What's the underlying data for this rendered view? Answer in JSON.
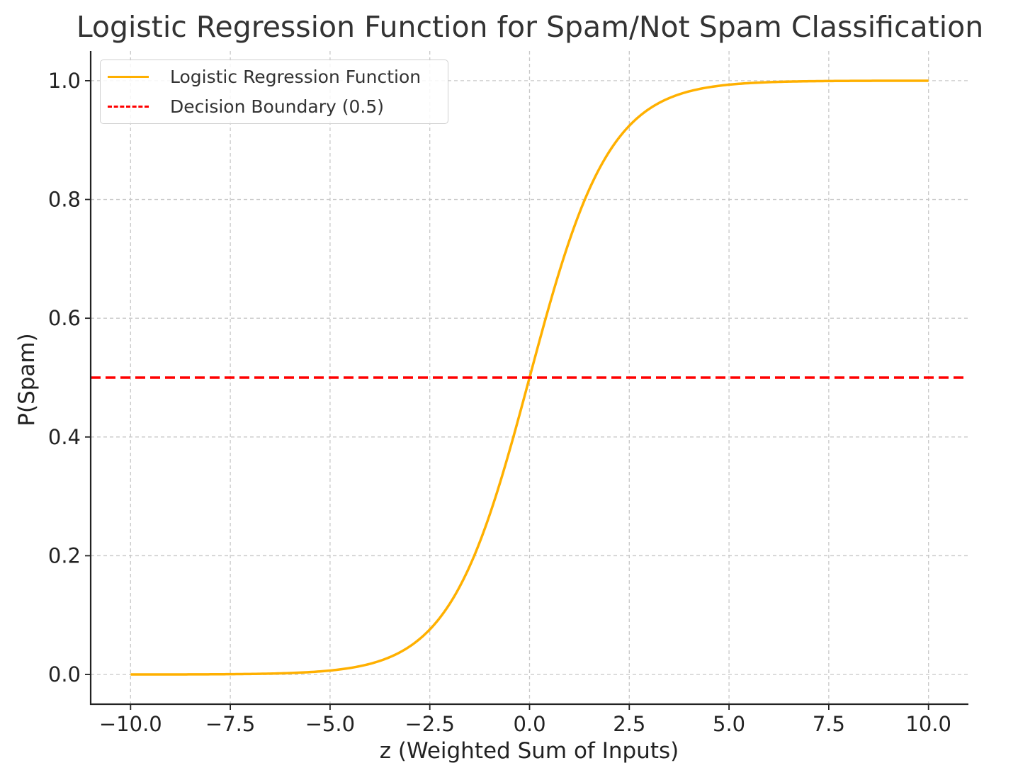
{
  "chart_data": {
    "type": "line",
    "title": "Logistic Regression Function for Spam/Not Spam Classification",
    "xlabel": "z (Weighted Sum of Inputs)",
    "ylabel": "P(Spam)",
    "xlim": [
      -11,
      11
    ],
    "ylim": [
      -0.05,
      1.05
    ],
    "xticks": [
      -10,
      -7.5,
      -5,
      -2.5,
      0,
      2.5,
      5,
      7.5,
      10
    ],
    "xtick_labels": [
      "−10.0",
      "−7.5",
      "−5.0",
      "−2.5",
      "0.0",
      "2.5",
      "5.0",
      "7.5",
      "10.0"
    ],
    "yticks": [
      0,
      0.2,
      0.4,
      0.6,
      0.8,
      1.0
    ],
    "ytick_labels": [
      "0.0",
      "0.2",
      "0.4",
      "0.6",
      "0.8",
      "1.0"
    ],
    "grid": true,
    "legend_position": "top-left",
    "series": [
      {
        "name": "Logistic Regression Function",
        "color": "#FFB000",
        "x": [
          -10,
          -9,
          -8,
          -7,
          -6,
          -5,
          -4.5,
          -4,
          -3.5,
          -3,
          -2.5,
          -2,
          -1.5,
          -1,
          -0.5,
          0,
          0.5,
          1,
          1.5,
          2,
          2.5,
          3,
          3.5,
          4,
          4.5,
          5,
          6,
          7,
          8,
          9,
          10
        ],
        "y": [
          4.54e-05,
          0.000123,
          0.000335,
          0.000911,
          0.00247,
          0.00669,
          0.011,
          0.018,
          0.0293,
          0.0474,
          0.0759,
          0.1192,
          0.1824,
          0.2689,
          0.3775,
          0.5,
          0.6225,
          0.7311,
          0.8176,
          0.8808,
          0.9241,
          0.9526,
          0.9707,
          0.982,
          0.989,
          0.99331,
          0.99753,
          0.99909,
          0.99966,
          0.99988,
          0.99995
        ]
      },
      {
        "name": "Decision Boundary (0.5)",
        "color": "#FF0000",
        "style": "dashed",
        "y_constant": 0.5
      }
    ]
  }
}
